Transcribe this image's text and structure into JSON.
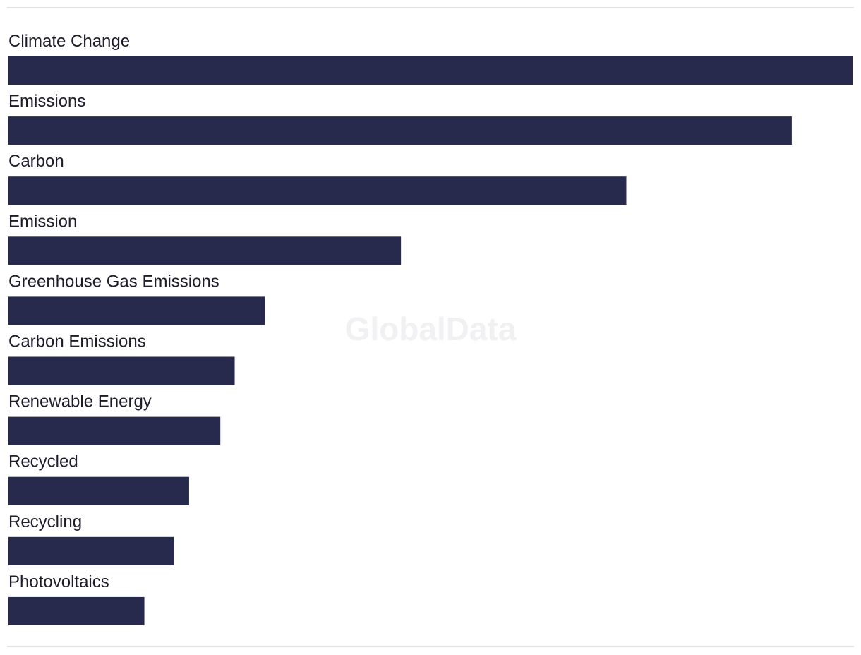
{
  "watermark": "GlobalData",
  "chart_data": {
    "type": "bar",
    "orientation": "horizontal",
    "title": "",
    "xlabel": "",
    "ylabel": "",
    "bar_color": "#282a4d",
    "grid": false,
    "legend": "none",
    "categories": [
      "Climate Change",
      "Emissions",
      "Carbon",
      "Emission",
      "Greenhouse Gas Emissions",
      "Carbon Emissions",
      "Renewable Energy",
      "Recycled",
      "Recycling",
      "Photovoltaics"
    ],
    "values": [
      100,
      92.8,
      73.2,
      46.5,
      30.4,
      26.8,
      25.1,
      21.4,
      19.6,
      16.1
    ],
    "xlim": [
      0,
      100
    ]
  }
}
